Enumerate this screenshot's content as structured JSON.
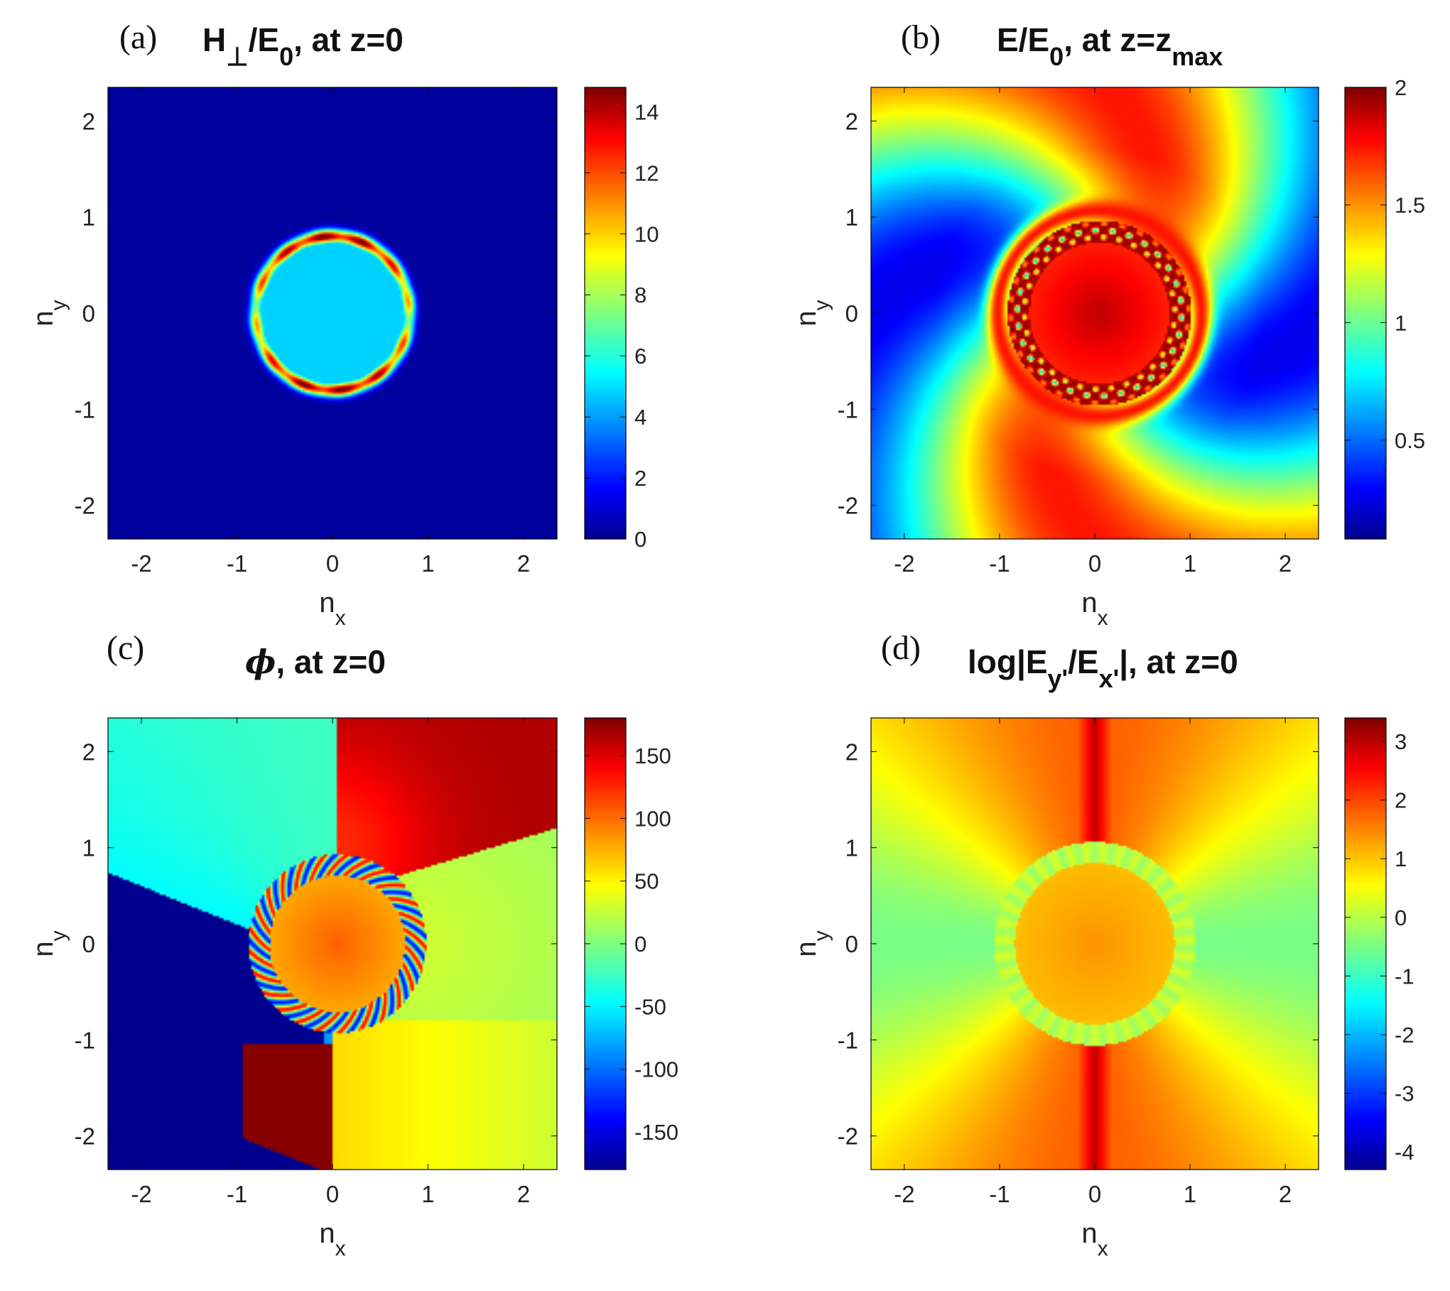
{
  "colormap": "jet",
  "jet_colors": [
    "#00008f",
    "#0000ff",
    "#00ffff",
    "#ffff00",
    "#ff0000",
    "#800000"
  ],
  "chart_data": [
    {
      "type": "heatmap",
      "panel_label": "(a)",
      "title_parts": [
        {
          "t": "H"
        },
        {
          "t": "⊥",
          "sub": true
        },
        {
          "t": "/E"
        },
        {
          "t": "0",
          "sub": true
        },
        {
          "t": ", at z=0"
        }
      ],
      "xlabel": "n",
      "xlabel_sub": "x",
      "ylabel": "n",
      "ylabel_sub": "y",
      "xlim": [
        -2.35,
        2.35
      ],
      "ylim": [
        -2.35,
        2.35
      ],
      "xticks": [
        -2,
        -1,
        0,
        1,
        2
      ],
      "xtick_labels": [
        "-2",
        "-1",
        "0",
        "1",
        "2"
      ],
      "yticks": [
        -2,
        -1,
        0,
        1,
        2
      ],
      "ytick_labels": [
        "-2",
        "-1",
        "0",
        "1",
        "2"
      ],
      "field": "ring_magnitude",
      "clim": [
        0,
        14.8
      ],
      "colorbar_ticks": [
        0,
        2,
        4,
        6,
        8,
        10,
        12,
        14
      ],
      "colorbar_labels": [
        "0",
        "2",
        "4",
        "6",
        "8",
        "10",
        "12",
        "14"
      ],
      "features": {
        "ring_center": [
          0.0,
          0.0
        ],
        "ring_radius": 0.8,
        "background": 0.2,
        "disk_inside": 4.8,
        "ring_peak": 14
      }
    },
    {
      "type": "heatmap",
      "panel_label": "(b)",
      "title_parts": [
        {
          "t": "E/E"
        },
        {
          "t": "0",
          "sub": true
        },
        {
          "t": ", at z=z"
        },
        {
          "t": "max",
          "sub": true
        }
      ],
      "xlabel": "n",
      "xlabel_sub": "x",
      "ylabel": "n",
      "ylabel_sub": "y",
      "xlim": [
        -2.35,
        2.35
      ],
      "ylim": [
        -2.35,
        2.35
      ],
      "xticks": [
        -2,
        -1,
        0,
        1,
        2
      ],
      "xtick_labels": [
        "-2",
        "-1",
        "0",
        "1",
        "2"
      ],
      "yticks": [
        -2,
        -1,
        0,
        1,
        2
      ],
      "ytick_labels": [
        "-2",
        "-1",
        "0",
        "1",
        "2"
      ],
      "field": "swirl_magnitude",
      "clim": [
        0.08,
        2.0
      ],
      "colorbar_ticks": [
        0.5,
        1,
        1.5,
        2
      ],
      "colorbar_labels": [
        "0.5",
        "1",
        "1.5",
        "2"
      ],
      "features": {
        "ring_center": [
          0.05,
          0.0
        ],
        "ring_radius": 0.85,
        "center_value": 1.7,
        "ring_peak": 1.95
      }
    },
    {
      "type": "heatmap",
      "panel_label": "(c)",
      "title_parts": [
        {
          "t": "ϕ",
          "italic": true
        },
        {
          "t": ", at z=0"
        }
      ],
      "xlabel": "n",
      "xlabel_sub": "x",
      "ylabel": "n",
      "ylabel_sub": "y",
      "xlim": [
        -2.35,
        2.35
      ],
      "ylim": [
        -2.35,
        2.35
      ],
      "xticks": [
        -2,
        -1,
        0,
        1,
        2
      ],
      "xtick_labels": [
        "-2",
        "-1",
        "0",
        "1",
        "2"
      ],
      "yticks": [
        -2,
        -1,
        0,
        1,
        2
      ],
      "ytick_labels": [
        "-2",
        "-1",
        "0",
        "1",
        "2"
      ],
      "field": "phase",
      "clim": [
        -180,
        180
      ],
      "colorbar_ticks": [
        -150,
        -100,
        -50,
        0,
        50,
        100,
        150
      ],
      "colorbar_labels": [
        "-150",
        "-100",
        "-50",
        "0",
        "50",
        "100",
        "150"
      ],
      "features": {
        "ring_center": [
          0.05,
          0.0
        ],
        "ring_radius": 0.82,
        "inside_value": 75,
        "upper_right": 165,
        "lower_left": -180
      }
    },
    {
      "type": "heatmap",
      "panel_label": "(d)",
      "title_parts": [
        {
          "t": "log|E"
        },
        {
          "t": "y'",
          "sub": true
        },
        {
          "t": "/E"
        },
        {
          "t": "x'",
          "sub": true
        },
        {
          "t": "|, at z=0"
        }
      ],
      "xlabel": "n",
      "xlabel_sub": "x",
      "ylabel": "n",
      "ylabel_sub": "y",
      "xlim": [
        -2.35,
        2.35
      ],
      "ylim": [
        -2.35,
        2.35
      ],
      "xticks": [
        -2,
        -1,
        0,
        1,
        2
      ],
      "xtick_labels": [
        "-2",
        "-1",
        "0",
        "1",
        "2"
      ],
      "yticks": [
        -2,
        -1,
        0,
        1,
        2
      ],
      "ytick_labels": [
        "-2",
        "-1",
        "0",
        "1",
        "2"
      ],
      "field": "log_ratio",
      "clim": [
        -4.3,
        3.4
      ],
      "colorbar_ticks": [
        -4,
        -3,
        -2,
        -1,
        0,
        1,
        2,
        3
      ],
      "colorbar_labels": [
        "-4",
        "-3",
        "-2",
        "-1",
        "0",
        "1",
        "2",
        "3"
      ],
      "features": {
        "ring_center": [
          0.0,
          0.0
        ],
        "ring_radius": 0.95,
        "inside_value": 1.0,
        "vertical_lobes": 2.8
      }
    }
  ]
}
